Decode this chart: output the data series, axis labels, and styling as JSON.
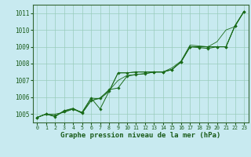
{
  "xlabel": "Graphe pression niveau de la mer (hPa)",
  "bg_color": "#c8eaf0",
  "grid_color": "#99ccbb",
  "line_color": "#1a6b1a",
  "xlim": [
    -0.5,
    23.5
  ],
  "ylim": [
    1004.5,
    1011.5
  ],
  "yticks": [
    1005,
    1006,
    1007,
    1008,
    1009,
    1010,
    1011
  ],
  "xticks": [
    0,
    1,
    2,
    3,
    4,
    5,
    6,
    7,
    8,
    9,
    10,
    11,
    12,
    13,
    14,
    15,
    16,
    17,
    18,
    19,
    20,
    21,
    22,
    23
  ],
  "series": [
    [
      1004.8,
      1005.0,
      1004.9,
      1005.15,
      1005.3,
      1005.1,
      1005.95,
      1005.3,
      1006.35,
      1007.45,
      1007.45,
      1007.5,
      1007.5,
      1007.5,
      1007.5,
      1007.65,
      1008.1,
      1009.0,
      1009.0,
      1009.0,
      1009.0,
      1009.0,
      1010.25,
      1011.1
    ],
    [
      1004.8,
      1005.0,
      1004.85,
      1005.2,
      1005.3,
      1005.05,
      1005.8,
      1005.95,
      1006.45,
      1006.55,
      1007.25,
      1007.35,
      1007.4,
      1007.5,
      1007.5,
      1007.65,
      1008.1,
      1009.0,
      1008.95,
      1008.9,
      1009.0,
      1009.0,
      1010.25,
      1011.1
    ],
    [
      1004.8,
      1005.0,
      1005.0,
      1005.1,
      1005.3,
      1005.1,
      1005.95,
      1005.9,
      1006.35,
      1007.45,
      1007.45,
      1007.5,
      1007.5,
      1007.5,
      1007.5,
      1007.65,
      1008.1,
      1009.0,
      1009.0,
      1009.0,
      1009.0,
      1009.0,
      1010.25,
      1011.1
    ],
    [
      1004.8,
      1005.0,
      1004.85,
      1005.2,
      1005.35,
      1005.05,
      1005.8,
      1005.95,
      1006.4,
      1007.0,
      1007.3,
      1007.35,
      1007.4,
      1007.5,
      1007.5,
      1007.75,
      1008.15,
      1009.1,
      1009.05,
      1009.0,
      1009.3,
      1010.0,
      1010.2,
      1011.1
    ]
  ],
  "has_markers": [
    true,
    true,
    false,
    false
  ]
}
